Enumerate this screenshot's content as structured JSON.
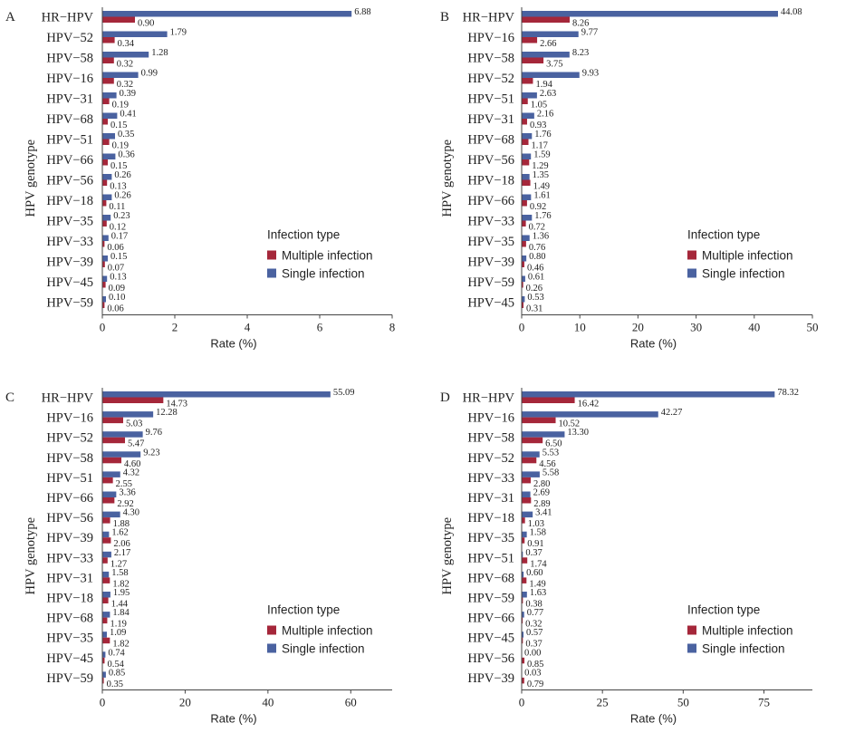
{
  "colors": {
    "single": "#4a62a0",
    "multiple": "#a5273a",
    "axis": "#444444"
  },
  "chart_data": [
    {
      "type": "bar",
      "orientation": "horizontal",
      "panel": "A",
      "xlabel": "Rate (%)",
      "ylabel": "HPV genotype",
      "xlim": [
        0,
        8
      ],
      "xticks": [
        0,
        2,
        4,
        6,
        8
      ],
      "legend_title": "Infection type",
      "legend_position": "bottom-right",
      "categories": [
        "HR−HPV",
        "HPV−52",
        "HPV−58",
        "HPV−16",
        "HPV−31",
        "HPV−68",
        "HPV−51",
        "HPV−66",
        "HPV−56",
        "HPV−18",
        "HPV−35",
        "HPV−33",
        "HPV−39",
        "HPV−45",
        "HPV−59"
      ],
      "series": [
        {
          "name": "Single infection",
          "values": [
            6.88,
            1.79,
            1.28,
            0.99,
            0.39,
            0.41,
            0.35,
            0.36,
            0.26,
            0.26,
            0.23,
            0.17,
            0.15,
            0.13,
            0.1
          ]
        },
        {
          "name": "Multiple infection",
          "values": [
            0.9,
            0.34,
            0.32,
            0.32,
            0.19,
            0.15,
            0.19,
            0.15,
            0.13,
            0.11,
            0.12,
            0.06,
            0.07,
            0.09,
            0.06
          ]
        }
      ]
    },
    {
      "type": "bar",
      "orientation": "horizontal",
      "panel": "B",
      "xlabel": "Rate (%)",
      "ylabel": "HPV genotype",
      "xlim": [
        0,
        50
      ],
      "xticks": [
        0,
        10,
        20,
        30,
        40,
        50
      ],
      "legend_title": "Infection type",
      "legend_position": "bottom-right",
      "categories": [
        "HR−HPV",
        "HPV−16",
        "HPV−58",
        "HPV−52",
        "HPV−51",
        "HPV−31",
        "HPV−68",
        "HPV−56",
        "HPV−18",
        "HPV−66",
        "HPV−33",
        "HPV−35",
        "HPV−39",
        "HPV−59",
        "HPV−45"
      ],
      "series": [
        {
          "name": "Single infection",
          "values": [
            44.08,
            9.77,
            8.23,
            9.93,
            2.63,
            2.16,
            1.76,
            1.59,
            1.35,
            1.61,
            1.76,
            1.36,
            0.8,
            0.61,
            0.53
          ]
        },
        {
          "name": "Multiple infection",
          "values": [
            8.26,
            2.66,
            3.75,
            1.94,
            1.05,
            0.93,
            1.17,
            1.29,
            1.49,
            0.92,
            0.72,
            0.76,
            0.46,
            0.26,
            0.31
          ]
        }
      ]
    },
    {
      "type": "bar",
      "orientation": "horizontal",
      "panel": "C",
      "xlabel": "Rate (%)",
      "ylabel": "HPV genotype",
      "xlim": [
        0,
        70
      ],
      "xticks": [
        0,
        20,
        40,
        60
      ],
      "legend_title": "Infection type",
      "legend_position": "bottom-right",
      "categories": [
        "HR−HPV",
        "HPV−16",
        "HPV−52",
        "HPV−58",
        "HPV−51",
        "HPV−66",
        "HPV−56",
        "HPV−39",
        "HPV−33",
        "HPV−31",
        "HPV−18",
        "HPV−68",
        "HPV−35",
        "HPV−45",
        "HPV−59"
      ],
      "series": [
        {
          "name": "Single infection",
          "values": [
            55.09,
            12.28,
            9.76,
            9.23,
            4.32,
            3.36,
            4.3,
            1.62,
            2.17,
            1.58,
            1.95,
            1.84,
            1.09,
            0.74,
            0.85
          ]
        },
        {
          "name": "Multiple infection",
          "values": [
            14.73,
            5.03,
            5.47,
            4.6,
            2.55,
            2.92,
            1.88,
            2.06,
            1.27,
            1.82,
            1.44,
            1.19,
            1.82,
            0.54,
            0.35
          ]
        }
      ]
    },
    {
      "type": "bar",
      "orientation": "horizontal",
      "panel": "D",
      "xlabel": "Rate (%)",
      "ylabel": "HPV genotype",
      "xlim": [
        0,
        90
      ],
      "xticks": [
        0,
        25,
        50,
        75
      ],
      "legend_title": "Infection type",
      "legend_position": "bottom-right",
      "categories": [
        "HR−HPV",
        "HPV−16",
        "HPV−58",
        "HPV−52",
        "HPV−33",
        "HPV−31",
        "HPV−18",
        "HPV−35",
        "HPV−51",
        "HPV−68",
        "HPV−59",
        "HPV−66",
        "HPV−45",
        "HPV−56",
        "HPV−39"
      ],
      "series": [
        {
          "name": "Single infection",
          "values": [
            78.32,
            42.27,
            13.3,
            5.53,
            5.58,
            2.69,
            3.41,
            1.58,
            0.37,
            0.6,
            1.63,
            0.77,
            0.57,
            0.0,
            0.03
          ]
        },
        {
          "name": "Multiple infection",
          "values": [
            16.42,
            10.52,
            6.5,
            4.56,
            2.8,
            2.89,
            1.03,
            0.91,
            1.74,
            1.49,
            0.38,
            0.32,
            0.37,
            0.85,
            0.79
          ]
        }
      ]
    }
  ]
}
